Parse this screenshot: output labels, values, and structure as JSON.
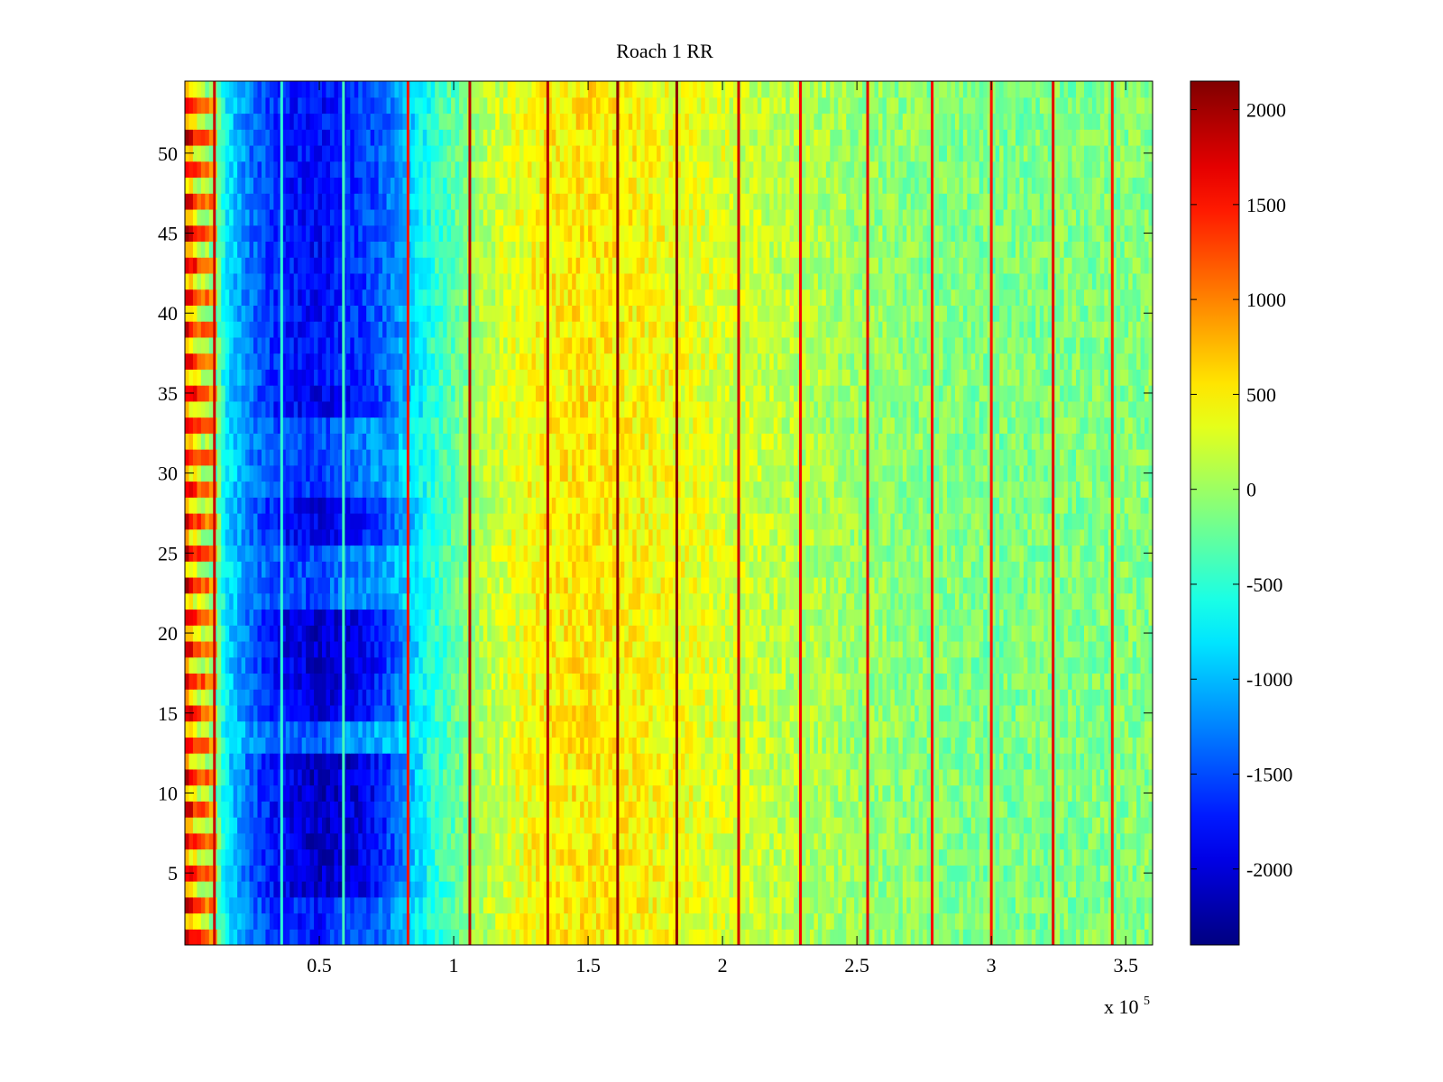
{
  "chart_data": {
    "type": "heatmap",
    "title": "Roach 1 RR",
    "xlabel": "",
    "ylabel": "",
    "x_multiplier_label": {
      "base": "x 10",
      "exponent": "5"
    },
    "xlim": [
      0,
      3.6
    ],
    "ylim": [
      0.5,
      54.5
    ],
    "x_ticks": [
      0.5,
      1,
      1.5,
      2,
      2.5,
      3,
      3.5
    ],
    "x_tick_labels": [
      "0.5",
      "1",
      "1.5",
      "2",
      "2.5",
      "3",
      "3.5"
    ],
    "y_ticks": [
      5,
      10,
      15,
      20,
      25,
      30,
      35,
      40,
      45,
      50
    ],
    "y_tick_labels": [
      "5",
      "10",
      "15",
      "20",
      "25",
      "30",
      "35",
      "40",
      "45",
      "50"
    ],
    "n_rows": 54,
    "colormap": "jet",
    "clim": [
      -2400,
      2150
    ],
    "colorbar_ticks": [
      2000,
      1500,
      1000,
      500,
      0,
      -500,
      -1000,
      -1500,
      -2000
    ],
    "colorbar_tick_labels": [
      "2000",
      "1500",
      "1000",
      "500",
      "0",
      "-500",
      "-1000",
      "-1500",
      "-2000"
    ],
    "column_profile": [
      {
        "x": 0.0,
        "v": 1200
      },
      {
        "x": 0.05,
        "v": 600
      },
      {
        "x": 0.1,
        "v": 300
      },
      {
        "x": 0.15,
        "v": -700
      },
      {
        "x": 0.25,
        "v": -1300
      },
      {
        "x": 0.35,
        "v": -1700
      },
      {
        "x": 0.5,
        "v": -2000
      },
      {
        "x": 0.62,
        "v": -1700
      },
      {
        "x": 0.75,
        "v": -1200
      },
      {
        "x": 0.85,
        "v": -700
      },
      {
        "x": 1.0,
        "v": -300
      },
      {
        "x": 1.1,
        "v": 100
      },
      {
        "x": 1.3,
        "v": 450
      },
      {
        "x": 1.5,
        "v": 550
      },
      {
        "x": 1.8,
        "v": 400
      },
      {
        "x": 2.2,
        "v": 150
      },
      {
        "x": 2.6,
        "v": -50
      },
      {
        "x": 3.0,
        "v": -150
      },
      {
        "x": 3.6,
        "v": -100
      }
    ],
    "row_groups": [
      {
        "rows": [
          1,
          3
        ],
        "v": -1400
      },
      {
        "rows": [
          4,
          9
        ],
        "v": -2200
      },
      {
        "rows": [
          10,
          12
        ],
        "v": -2300
      },
      {
        "rows": [
          13,
          14
        ],
        "v": -700
      },
      {
        "rows": [
          15,
          17
        ],
        "v": -2000
      },
      {
        "rows": [
          18,
          21
        ],
        "v": -2200
      },
      {
        "rows": [
          22,
          25
        ],
        "v": -900
      },
      {
        "rows": [
          26,
          28
        ],
        "v": -1900
      },
      {
        "rows": [
          29,
          33
        ],
        "v": -1000
      },
      {
        "rows": [
          34,
          35
        ],
        "v": -1800
      },
      {
        "rows": [
          36,
          54
        ],
        "v": -1600
      }
    ],
    "vertical_lines": [
      {
        "x": 0.11,
        "v": 1800
      },
      {
        "x": 0.36,
        "v": -500
      },
      {
        "x": 0.59,
        "v": -400
      },
      {
        "x": 0.83,
        "v": 1500
      },
      {
        "x": 1.06,
        "v": 1900
      },
      {
        "x": 1.35,
        "v": 1900
      },
      {
        "x": 1.61,
        "v": 2100
      },
      {
        "x": 1.83,
        "v": 2100
      },
      {
        "x": 2.06,
        "v": 1800
      },
      {
        "x": 2.29,
        "v": 1600
      },
      {
        "x": 2.54,
        "v": 1700
      },
      {
        "x": 2.78,
        "v": 1600
      },
      {
        "x": 3.0,
        "v": 1500
      },
      {
        "x": 3.23,
        "v": 1700
      },
      {
        "x": 3.45,
        "v": 1500
      }
    ]
  }
}
